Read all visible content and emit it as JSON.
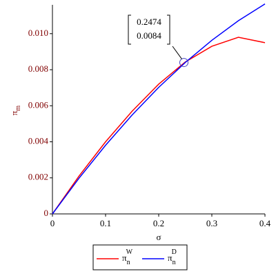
{
  "chart_data": {
    "type": "line",
    "x": [
      0,
      0.05,
      0.1,
      0.15,
      0.2,
      0.25,
      0.3,
      0.35,
      0.4
    ],
    "series": [
      {
        "name": "π",
        "subscript": "n",
        "superscript": "W",
        "color": "#ff0000",
        "values": [
          0,
          0.0021,
          0.004,
          0.0057,
          0.0072,
          0.00843,
          0.0093,
          0.0098,
          0.0095
        ]
      },
      {
        "name": "π",
        "subscript": "n",
        "superscript": "D",
        "color": "#0000ff",
        "values": [
          0,
          0.00198,
          0.00381,
          0.00549,
          0.00702,
          0.0084,
          0.00963,
          0.01072,
          0.01165
        ]
      }
    ],
    "xlabel": "σ",
    "ylabel": {
      "text": "π",
      "subscript": "m"
    },
    "xlim": [
      0,
      0.4
    ],
    "ylim": [
      0,
      0.0116
    ],
    "xticks": [
      0,
      0.1,
      0.2,
      0.3,
      0.4
    ],
    "yticks": [
      0,
      0.002,
      0.004,
      0.006,
      0.008,
      {
        "value": 0.01,
        "label": "0.010"
      }
    ],
    "annotation": {
      "x": 0.2474,
      "y": 0.0084,
      "labels": [
        "0.2474",
        "0.0084"
      ]
    }
  }
}
